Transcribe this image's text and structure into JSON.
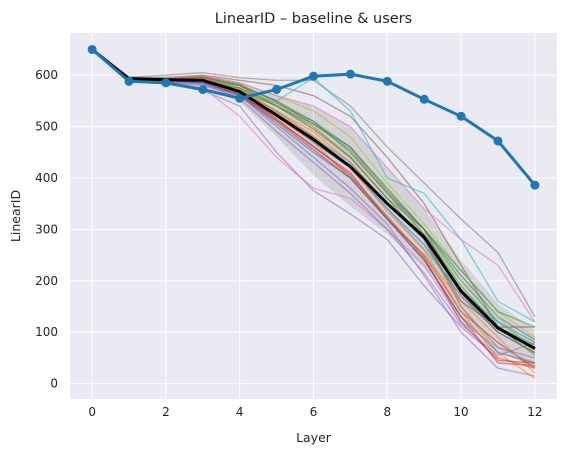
{
  "chart_data": {
    "type": "line",
    "title": "LinearID – baseline & users",
    "xlabel": "Layer",
    "ylabel": "LinearID",
    "xlim": [
      -0.6,
      12.6
    ],
    "ylim": [
      -30,
      682
    ],
    "xticks": [
      0,
      2,
      4,
      6,
      8,
      10,
      12
    ],
    "yticks": [
      0,
      100,
      200,
      300,
      400,
      500,
      600
    ],
    "grid": true,
    "background": "#eaeaf2",
    "x": [
      0,
      1,
      2,
      3,
      4,
      5,
      6,
      7,
      8,
      9,
      10,
      11,
      12
    ],
    "baseline": {
      "color": "#1f77b4",
      "values": [
        650,
        588,
        585,
        572,
        555,
        572,
        598,
        602,
        588,
        553,
        520,
        472,
        386
      ]
    },
    "mean": {
      "color": "#000000",
      "values": [
        650,
        593,
        591,
        590,
        568,
        522,
        475,
        422,
        350,
        285,
        180,
        108,
        68
      ]
    },
    "band": {
      "color": "#808080",
      "upper": [
        652,
        598,
        598,
        600,
        585,
        560,
        540,
        500,
        420,
        340,
        240,
        155,
        105
      ],
      "lower": [
        648,
        588,
        583,
        578,
        548,
        480,
        405,
        345,
        290,
        225,
        125,
        62,
        32
      ]
    },
    "users": [
      {
        "color": "#1f77b4",
        "values": [
          650,
          592,
          590,
          585,
          560,
          520,
          470,
          420,
          340,
          270,
          170,
          100,
          60
        ]
      },
      {
        "color": "#ff7f0e",
        "values": [
          650,
          595,
          592,
          595,
          575,
          530,
          490,
          430,
          350,
          290,
          150,
          60,
          10
        ]
      },
      {
        "color": "#2ca02c",
        "values": [
          650,
          590,
          588,
          590,
          570,
          540,
          500,
          440,
          360,
          300,
          200,
          120,
          80
        ]
      },
      {
        "color": "#d62728",
        "values": [
          650,
          594,
          590,
          592,
          565,
          515,
          460,
          410,
          320,
          250,
          140,
          80,
          30
        ]
      },
      {
        "color": "#9467bd",
        "values": [
          650,
          590,
          585,
          570,
          540,
          450,
          375,
          330,
          280,
          190,
          110,
          50,
          30
        ]
      },
      {
        "color": "#8c564b",
        "values": [
          650,
          595,
          595,
          600,
          590,
          580,
          560,
          520,
          440,
          350,
          230,
          110,
          75
        ]
      },
      {
        "color": "#e377c2",
        "values": [
          650,
          593,
          590,
          575,
          520,
          440,
          380,
          360,
          300,
          230,
          120,
          70,
          40
        ]
      },
      {
        "color": "#7f7f7f",
        "values": [
          650,
          596,
          600,
          605,
          595,
          590,
          590,
          540,
          460,
          390,
          320,
          255,
          130
        ]
      },
      {
        "color": "#bcbd22",
        "values": [
          650,
          594,
          595,
          598,
          585,
          560,
          530,
          480,
          390,
          310,
          220,
          140,
          90
        ]
      },
      {
        "color": "#17becf",
        "values": [
          650,
          592,
          590,
          590,
          580,
          550,
          595,
          530,
          400,
          370,
          280,
          160,
          120
        ]
      },
      {
        "color": "#1f77b4",
        "values": [
          650,
          591,
          590,
          585,
          575,
          545,
          510,
          450,
          370,
          300,
          210,
          130,
          85
        ]
      },
      {
        "color": "#ff7f0e",
        "values": [
          650,
          595,
          590,
          592,
          570,
          520,
          470,
          400,
          320,
          250,
          160,
          90,
          20
        ]
      },
      {
        "color": "#2ca02c",
        "values": [
          650,
          593,
          592,
          594,
          580,
          550,
          510,
          460,
          380,
          300,
          220,
          140,
          110
        ]
      },
      {
        "color": "#d62728",
        "values": [
          650,
          592,
          588,
          588,
          560,
          510,
          455,
          400,
          320,
          240,
          130,
          40,
          35
        ]
      },
      {
        "color": "#9467bd",
        "values": [
          650,
          591,
          587,
          580,
          560,
          500,
          440,
          380,
          310,
          210,
          100,
          30,
          15
        ]
      },
      {
        "color": "#8c564b",
        "values": [
          650,
          594,
          591,
          596,
          580,
          540,
          495,
          440,
          360,
          280,
          160,
          110,
          110
        ]
      },
      {
        "color": "#e377c2",
        "values": [
          650,
          595,
          595,
          600,
          585,
          560,
          540,
          500,
          420,
          340,
          280,
          230,
          120
        ]
      },
      {
        "color": "#7f7f7f",
        "values": [
          650,
          592,
          590,
          588,
          570,
          530,
          480,
          430,
          350,
          280,
          150,
          70,
          50
        ]
      },
      {
        "color": "#bcbd22",
        "values": [
          650,
          594,
          593,
          592,
          575,
          545,
          500,
          445,
          370,
          290,
          200,
          130,
          60
        ]
      },
      {
        "color": "#17becf",
        "values": [
          650,
          593,
          591,
          589,
          565,
          525,
          470,
          420,
          340,
          260,
          180,
          120,
          70
        ]
      },
      {
        "color": "#1f77b4",
        "values": [
          650,
          590,
          588,
          584,
          562,
          505,
          450,
          400,
          320,
          240,
          130,
          60,
          40
        ]
      },
      {
        "color": "#ff7f0e",
        "values": [
          650,
          594,
          592,
          593,
          572,
          528,
          482,
          420,
          335,
          260,
          140,
          50,
          30
        ]
      },
      {
        "color": "#2ca02c",
        "values": [
          650,
          592,
          590,
          591,
          575,
          540,
          505,
          455,
          370,
          290,
          190,
          110,
          55
        ]
      },
      {
        "color": "#d62728",
        "values": [
          650,
          593,
          589,
          587,
          563,
          512,
          462,
          405,
          325,
          245,
          120,
          45,
          40
        ]
      },
      {
        "color": "#9467bd",
        "values": [
          650,
          591,
          589,
          583,
          555,
          490,
          430,
          370,
          300,
          215,
          115,
          55,
          80
        ]
      },
      {
        "color": "#8c564b",
        "values": [
          650,
          595,
          593,
          597,
          582,
          548,
          505,
          460,
          375,
          300,
          175,
          100,
          60
        ]
      }
    ]
  }
}
